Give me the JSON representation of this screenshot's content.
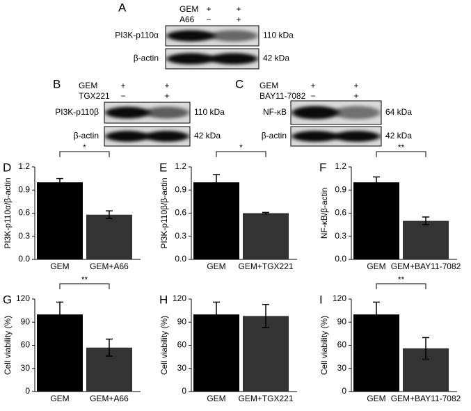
{
  "blots": [
    {
      "panel": "A",
      "treatments": [
        {
          "name": "GEM",
          "signs": [
            "+",
            "+"
          ]
        },
        {
          "name": "A66",
          "signs": [
            "−",
            "+"
          ]
        }
      ],
      "bands": [
        {
          "label": "PI3K-p110α",
          "size": "110 kDa"
        },
        {
          "label": "β-actin",
          "size": "42 kDa"
        }
      ]
    },
    {
      "panel": "B",
      "treatments": [
        {
          "name": "GEM",
          "signs": [
            "+",
            "+"
          ]
        },
        {
          "name": "TGX221",
          "signs": [
            "−",
            "+"
          ]
        }
      ],
      "bands": [
        {
          "label": "PI3K-p110β",
          "size": "110 kDa"
        },
        {
          "label": "β-actin",
          "size": "42 kDa"
        }
      ]
    },
    {
      "panel": "C",
      "treatments": [
        {
          "name": "GEM",
          "signs": [
            "+",
            "+"
          ]
        },
        {
          "name": "BAY11-7082",
          "signs": [
            "−",
            "+"
          ]
        }
      ],
      "bands": [
        {
          "label": "NF-κB",
          "size": "64 kDa"
        },
        {
          "label": "β-actin",
          "size": "42 kDa"
        }
      ]
    }
  ],
  "chart_data": [
    {
      "type": "bar",
      "panel": "D",
      "ylabel": "PI3K-p110α/β-actin",
      "categories": [
        "GEM",
        "GEM+A66"
      ],
      "values": [
        1.0,
        0.58
      ],
      "errors": [
        0.05,
        0.05
      ],
      "colors": [
        "#000000",
        "#333333"
      ],
      "ylim": [
        0,
        1.2
      ],
      "yticks": [
        {
          "value": 0,
          "label": "0.0"
        },
        0.3,
        0.6,
        0.9,
        1.2
      ],
      "annotation": "*"
    },
    {
      "type": "bar",
      "panel": "E",
      "ylabel": "PI3K-p110β/β-actin",
      "categories": [
        "GEM",
        "GEM+TGX221"
      ],
      "values": [
        1.0,
        0.6
      ],
      "errors": [
        0.1,
        0.01
      ],
      "colors": [
        "#000000",
        "#333333"
      ],
      "ylim": [
        0,
        1.2
      ],
      "yticks": [
        {
          "value": 0,
          "label": "0.0"
        },
        0.3,
        0.6,
        0.9,
        1.2
      ],
      "annotation": "*"
    },
    {
      "type": "bar",
      "panel": "F",
      "ylabel": "NF-κB/β-actin",
      "categories": [
        "GEM",
        "GEM+BAY11-7082"
      ],
      "values": [
        1.0,
        0.5
      ],
      "errors": [
        0.07,
        0.05
      ],
      "colors": [
        "#000000",
        "#333333"
      ],
      "ylim": [
        0,
        1.2
      ],
      "yticks": [
        {
          "value": 0,
          "label": "0.0"
        },
        0.3,
        0.6,
        0.9,
        1.2
      ],
      "annotation": "**"
    },
    {
      "type": "bar",
      "panel": "G",
      "ylabel": "Cell viability (%)",
      "categories": [
        "GEM",
        "GEM+A66"
      ],
      "values": [
        100,
        57
      ],
      "errors": [
        16,
        11
      ],
      "colors": [
        "#000000",
        "#333333"
      ],
      "ylim": [
        0,
        120
      ],
      "yticks": [
        0,
        30,
        60,
        90,
        120
      ],
      "annotation": "**"
    },
    {
      "type": "bar",
      "panel": "H",
      "ylabel": "Cell viability (%)",
      "categories": [
        "GEM",
        "GEM+TGX221"
      ],
      "values": [
        100,
        98
      ],
      "errors": [
        16,
        15
      ],
      "colors": [
        "#000000",
        "#333333"
      ],
      "ylim": [
        0,
        120
      ],
      "yticks": [
        0,
        30,
        60,
        90,
        120
      ]
    },
    {
      "type": "bar",
      "panel": "I",
      "ylabel": "Cell viability (%)",
      "categories": [
        "GEM",
        "GEM+BAY11-7082"
      ],
      "values": [
        100,
        56
      ],
      "errors": [
        16,
        14
      ],
      "colors": [
        "#000000",
        "#333333"
      ],
      "ylim": [
        0,
        120
      ],
      "yticks": [
        0,
        30,
        60,
        90,
        120
      ],
      "annotation": "**"
    }
  ]
}
